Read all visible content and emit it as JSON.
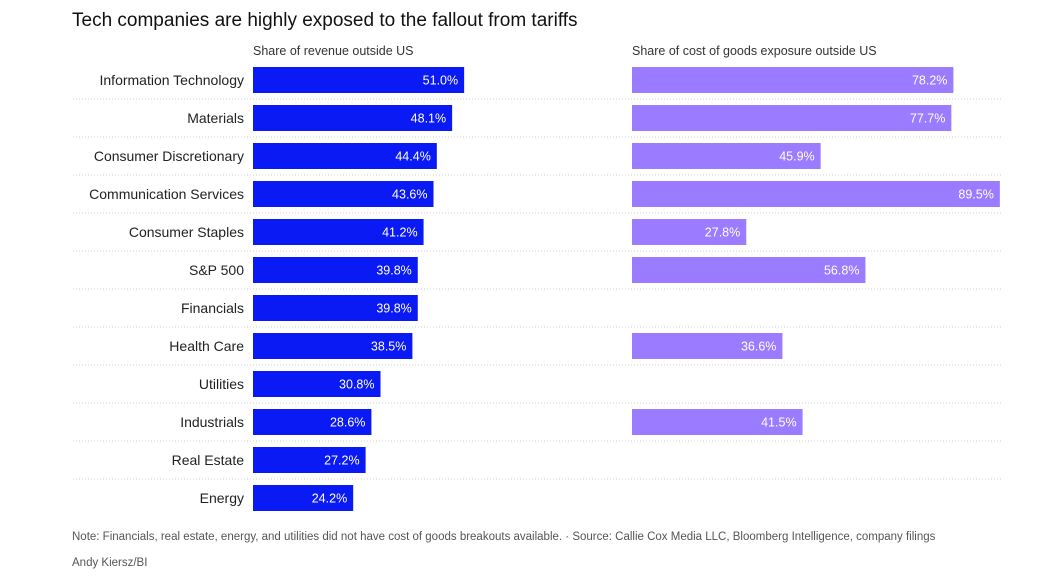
{
  "title": "Tech companies are highly exposed to the fallout from tariffs",
  "panels": {
    "left_title": "Share of revenue outside US",
    "right_title": "Share of cost of goods exposure outside US"
  },
  "colors": {
    "revenue_bar": "#0a1af5",
    "cogs_bar": "#9b7bff",
    "gridline": "#cfcfcf",
    "bar_label": "#ffffff"
  },
  "chart_data": {
    "type": "bar",
    "orientation": "horizontal",
    "title": "Tech companies are highly exposed to the fallout from tariffs",
    "categories": [
      "Information Technology",
      "Materials",
      "Consumer Discretionary",
      "Communication Services",
      "Consumer Staples",
      "S&P 500",
      "Financials",
      "Health Care",
      "Utilities",
      "Industrials",
      "Real Estate",
      "Energy"
    ],
    "series": [
      {
        "name": "Share of revenue outside US",
        "values": [
          51.0,
          48.1,
          44.4,
          43.6,
          41.2,
          39.8,
          39.8,
          38.5,
          30.8,
          28.6,
          27.2,
          24.2
        ],
        "labels": [
          "51.0%",
          "48.1%",
          "44.4%",
          "43.6%",
          "41.2%",
          "39.8%",
          "39.8%",
          "38.5%",
          "30.8%",
          "28.6%",
          "27.2%",
          "24.2%"
        ]
      },
      {
        "name": "Share of cost of goods exposure outside US",
        "values": [
          78.2,
          77.7,
          45.9,
          89.5,
          27.8,
          56.8,
          null,
          36.6,
          null,
          41.5,
          null,
          null
        ],
        "labels": [
          "78.2%",
          "77.7%",
          "45.9%",
          "89.5%",
          "27.8%",
          "56.8%",
          null,
          "36.6%",
          null,
          "41.5%",
          null,
          null
        ]
      }
    ],
    "xlim": [
      0,
      100
    ],
    "legend": "none",
    "grid": "dotted row separators"
  },
  "footer": {
    "note": "Note: Financials, real estate, energy, and utilities did not have cost of goods breakouts available. · Source: Callie Cox Media LLC, Bloomberg Intelligence, company filings",
    "credit": "Andy Kiersz/BI"
  }
}
